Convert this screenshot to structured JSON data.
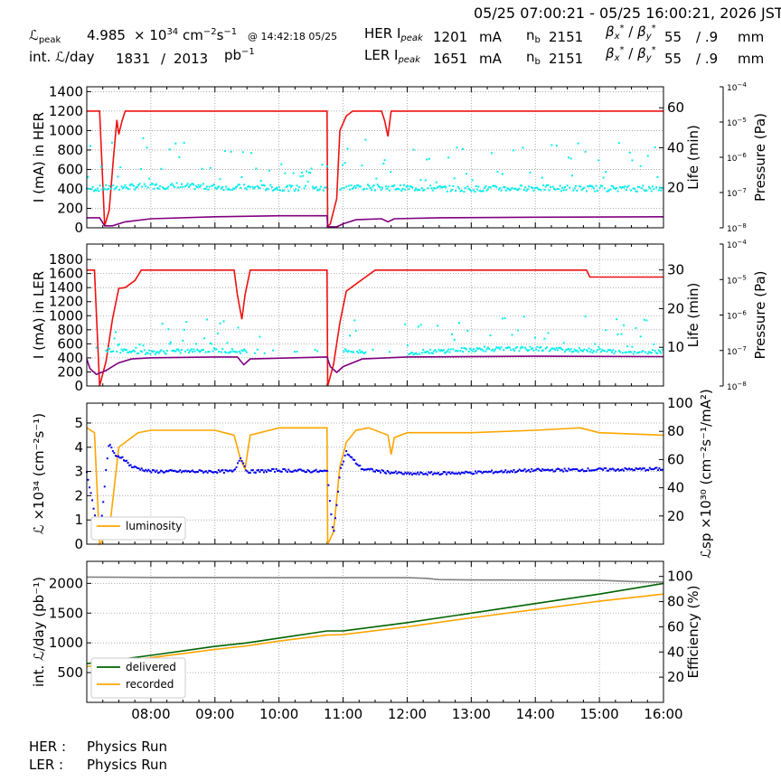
{
  "header": {
    "time_range": "05/25 07:00:21 - 05/25 16:00:21, 2026 JST",
    "lpeak_label": "ℒ",
    "lpeak_sub": "peak",
    "lpeak_value": "4.985",
    "lpeak_unit_x": "× 10",
    "lpeak_unit_exp": "34",
    "lpeak_unit_rest": "cm",
    "lpeak_unit_exp2": "−2",
    "lpeak_unit_s": "s",
    "lpeak_unit_exp3": "−1",
    "lpeak_time": "@ 14:42:18 05/25",
    "intl_label": "int. ℒ/day",
    "intl_value": "1831",
    "intl_sep": "/",
    "intl_total": "2013",
    "intl_unit": "pb",
    "intl_unit_exp": "−1",
    "her_label": "HER I",
    "her_sub": "peak",
    "her_value": "1201",
    "her_unit": "mA",
    "ler_label": "LER I",
    "ler_sub": "peak",
    "ler_value": "1651",
    "ler_unit": "mA",
    "nb_label": "n",
    "nb_sub": "b",
    "nb_her": "2151",
    "nb_ler": "2151",
    "beta_label": "β",
    "beta_x": "x",
    "beta_y": "y",
    "beta_star": "*",
    "beta_sep": "/",
    "beta_x_val": "55",
    "beta_y_val": "/ .9",
    "beta_unit": "mm"
  },
  "footer": {
    "her_label": "HER :",
    "her_status": "Physics Run",
    "ler_label": "LER :",
    "ler_status": "Physics Run"
  },
  "colors": {
    "current": "#ee1111",
    "life": "#800080",
    "pressure": "#00eeee",
    "luminosity": "#ffa500",
    "specific": "#0000ee",
    "delivered": "#006400",
    "recorded": "#ffa500",
    "efficiency": "#808080"
  },
  "chart_data": [
    {
      "type": "line",
      "ylabel": "I (mA) in HER",
      "right_label": "Life (min)",
      "pressure_label": "Pressure (Pa)",
      "yticks": [
        0,
        200,
        400,
        600,
        800,
        1000,
        1200,
        1400
      ],
      "ylim": [
        0,
        1450
      ],
      "right_ticks": [
        20,
        40,
        60
      ],
      "right_lim": [
        0,
        70.5
      ],
      "pressure_ticks": [
        "10^-8",
        "10^-7",
        "10^-6",
        "10^-5",
        "10^-4"
      ],
      "xlim": [
        7.0,
        16.0
      ],
      "series": [
        {
          "role": "current",
          "x": [
            7.0,
            7.2,
            7.28,
            7.35,
            7.42,
            7.47,
            7.5,
            7.55,
            7.6,
            7.72,
            7.8,
            10.75,
            10.76,
            10.8,
            10.9,
            10.95,
            11.05,
            11.15,
            11.25,
            11.3,
            11.6,
            11.65,
            11.7,
            11.75,
            11.8,
            16.0
          ],
          "y": [
            1200,
            1200,
            20,
            180,
            750,
            1110,
            960,
            1100,
            1200,
            1200,
            1200,
            1200,
            15,
            40,
            300,
            1000,
            1150,
            1200,
            1200,
            1200,
            1200,
            1100,
            940,
            1200,
            1200,
            1200
          ]
        },
        {
          "role": "life",
          "x": [
            7.0,
            7.2,
            7.28,
            7.4,
            7.6,
            8.0,
            9.0,
            10.0,
            10.75,
            10.76,
            10.9,
            11.0,
            11.2,
            11.6,
            11.7,
            11.8,
            12.5,
            14.0,
            16.0
          ],
          "y": [
            5,
            5,
            1,
            1,
            3,
            4.5,
            5.5,
            6,
            6,
            0.5,
            0.5,
            2,
            4,
            4.5,
            3,
            4.5,
            5,
            5.3,
            5.5
          ]
        },
        {
          "role": "pressure",
          "x": [
            7.0,
            8.0,
            9.0,
            10.0,
            10.7,
            11.0,
            12.0,
            13.0,
            14.0,
            15.0,
            16.0
          ],
          "y": [
            400,
            430,
            420,
            410,
            400,
            420,
            410,
            400,
            410,
            405,
            400
          ]
        }
      ]
    },
    {
      "type": "line",
      "ylabel": "I (mA) in LER",
      "right_label": "Life (min)",
      "pressure_label": "Pressure (Pa)",
      "yticks": [
        0,
        200,
        400,
        600,
        800,
        1000,
        1200,
        1400,
        1600,
        1800
      ],
      "ylim": [
        0,
        2020
      ],
      "right_ticks": [
        10,
        20,
        30
      ],
      "right_lim": [
        0,
        36.7
      ],
      "pressure_ticks": [
        "10^-8",
        "10^-7",
        "10^-6",
        "10^-5",
        "10^-4"
      ],
      "xlim": [
        7.0,
        16.0
      ],
      "series": [
        {
          "role": "current",
          "x": [
            7.0,
            7.12,
            7.2,
            7.3,
            7.4,
            7.5,
            7.6,
            7.75,
            7.85,
            8.0,
            9.3,
            9.35,
            9.42,
            9.47,
            9.55,
            9.6,
            10.75,
            10.76,
            10.85,
            10.95,
            11.05,
            11.2,
            11.35,
            11.5,
            14.8,
            14.85,
            16.0
          ],
          "y": [
            1650,
            1650,
            0,
            350,
            950,
            1390,
            1400,
            1500,
            1650,
            1650,
            1650,
            1300,
            950,
            1300,
            1650,
            1650,
            1650,
            0,
            300,
            900,
            1350,
            1450,
            1550,
            1650,
            1650,
            1550,
            1550
          ]
        },
        {
          "role": "life",
          "x": [
            7.0,
            7.05,
            7.15,
            7.3,
            7.5,
            7.7,
            8.0,
            9.0,
            9.35,
            9.45,
            9.55,
            10.75,
            10.8,
            10.9,
            11.0,
            11.3,
            12.0,
            14.0,
            16.0
          ],
          "y": [
            7,
            4.5,
            3,
            4,
            6,
            7,
            7.3,
            7.5,
            7.5,
            5.5,
            7,
            7.5,
            5,
            3.5,
            5,
            7,
            7.5,
            7.7,
            7.6
          ]
        },
        {
          "role": "pressure",
          "x": [
            7.3,
            7.5,
            8.0,
            9.0,
            9.5,
            11.0,
            12.0,
            13.0,
            14.0,
            15.0,
            15.5,
            16.0
          ],
          "y": [
            520,
            500,
            480,
            510,
            490,
            500,
            470,
            520,
            530,
            500,
            480,
            500
          ]
        }
      ]
    },
    {
      "type": "line",
      "ylabel": "ℒ ×10³⁴ (cm⁻²s⁻¹)",
      "right_label": "ℒsp ×10³⁰ (cm⁻²s⁻¹/mA²)",
      "yticks": [
        0,
        1,
        2,
        3,
        4,
        5
      ],
      "ylim": [
        0,
        5.82
      ],
      "right_ticks": [
        20,
        40,
        60,
        80,
        100
      ],
      "right_lim": [
        0,
        100
      ],
      "legend": [
        "luminosity"
      ],
      "xlim": [
        7.0,
        16.0
      ],
      "series": [
        {
          "name": "luminosity",
          "x": [
            7.0,
            7.12,
            7.2,
            7.35,
            7.5,
            7.6,
            7.8,
            8.0,
            9.0,
            9.3,
            9.4,
            9.47,
            9.55,
            10.0,
            10.5,
            10.75,
            10.76,
            10.85,
            10.95,
            11.05,
            11.2,
            11.4,
            11.7,
            11.75,
            11.8,
            12.0,
            13.0,
            14.0,
            14.7,
            15.0,
            16.0
          ],
          "y": [
            4.8,
            4.6,
            0,
            0.5,
            4,
            4.2,
            4.6,
            4.7,
            4.7,
            4.5,
            3.5,
            3.1,
            4.5,
            4.8,
            4.8,
            4.8,
            0,
            0.5,
            3.2,
            4.2,
            4.7,
            4.8,
            4.5,
            3.7,
            4.4,
            4.6,
            4.6,
            4.7,
            4.8,
            4.6,
            4.5
          ]
        },
        {
          "name": "specific",
          "x": [
            7.0,
            7.2,
            7.3,
            7.35,
            7.45,
            7.55,
            7.7,
            8.0,
            9.0,
            9.3,
            9.4,
            9.5,
            9.6,
            10.0,
            10.75,
            10.85,
            10.95,
            11.05,
            11.15,
            11.3,
            11.6,
            12.0,
            13.0,
            14.0,
            16.0
          ],
          "y": [
            3.0,
            0.2,
            3.0,
            4.2,
            3.6,
            3.6,
            3.2,
            3.0,
            3.0,
            3.0,
            3.6,
            3.0,
            3.0,
            3.05,
            3.0,
            0.3,
            3.0,
            3.8,
            3.5,
            3.1,
            3.0,
            2.9,
            2.95,
            3.05,
            3.1
          ]
        }
      ]
    },
    {
      "type": "line",
      "ylabel": "int. ℒ/day (pb⁻¹)",
      "right_label": "Efficiency (%)",
      "yticks": [
        500,
        1000,
        1500,
        2000
      ],
      "ylim": [
        0,
        2370
      ],
      "right_ticks": [
        20,
        40,
        60,
        80,
        100
      ],
      "right_lim": [
        0,
        112
      ],
      "legend": [
        "delivered",
        "recorded"
      ],
      "xticks": [
        "08:00",
        "09:00",
        "10:00",
        "11:00",
        "12:00",
        "13:00",
        "14:00",
        "15:00",
        "16:00"
      ],
      "xlim": [
        7.0,
        16.0
      ],
      "series": [
        {
          "name": "delivered",
          "x": [
            7.0,
            8.0,
            9.0,
            9.5,
            10.0,
            10.75,
            11.0,
            12.0,
            13.0,
            14.0,
            15.0,
            16.0
          ],
          "y": [
            650,
            790,
            940,
            1000,
            1080,
            1200,
            1200,
            1340,
            1500,
            1660,
            1820,
            2000
          ]
        },
        {
          "name": "recorded",
          "x": [
            7.0,
            8.0,
            9.0,
            9.5,
            10.0,
            10.75,
            11.0,
            12.0,
            13.0,
            14.0,
            15.0,
            16.0
          ],
          "y": [
            600,
            750,
            890,
            950,
            1030,
            1130,
            1140,
            1270,
            1420,
            1560,
            1700,
            1820
          ]
        },
        {
          "name": "efficiency",
          "x": [
            7.0,
            8.0,
            10.0,
            12.0,
            12.3,
            12.5,
            13.0,
            15.0,
            15.5,
            16.0
          ],
          "y": [
            99.5,
            99.2,
            99,
            99,
            98.5,
            97.5,
            97.2,
            97,
            96,
            95.5
          ]
        }
      ]
    }
  ]
}
